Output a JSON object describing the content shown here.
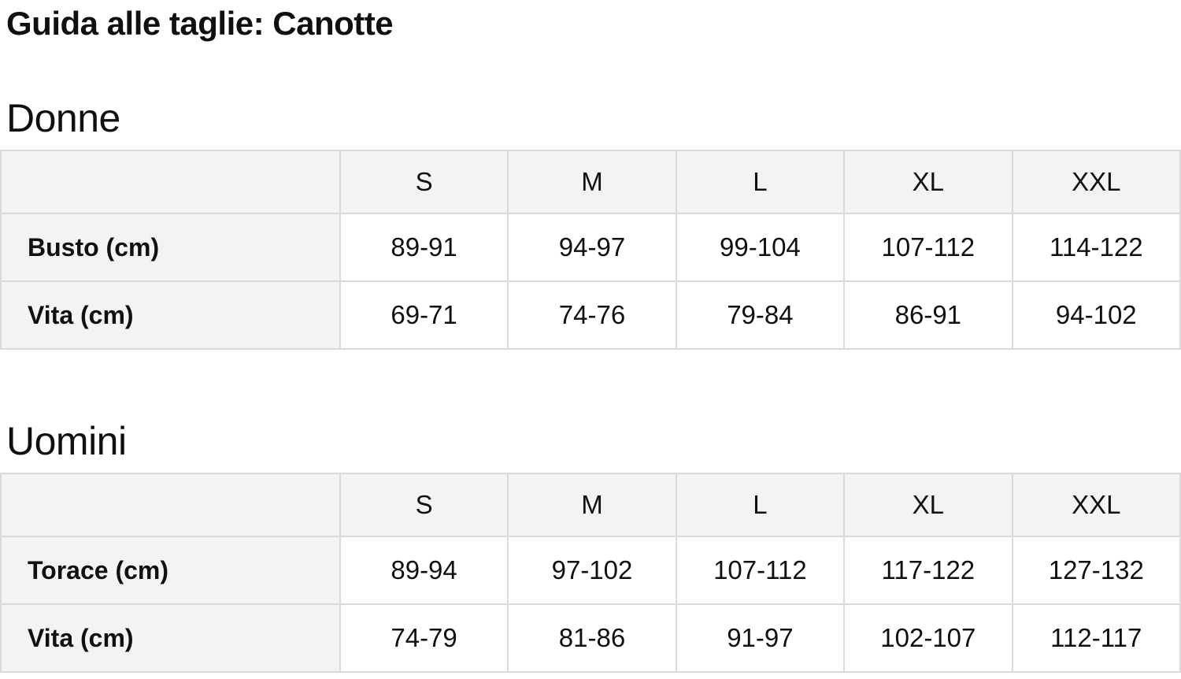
{
  "page": {
    "title": "Guida alle taglie: Canotte"
  },
  "colors": {
    "cell_shaded_bg": "#f3f3f3",
    "cell_plain_bg": "#ffffff",
    "border": "#d9d9d9",
    "text": "#0f1111"
  },
  "sections": [
    {
      "heading": "Donne",
      "table": {
        "columns": [
          "S",
          "M",
          "L",
          "XL",
          "XXL"
        ],
        "rows": [
          {
            "label": "Busto (cm)",
            "values": [
              "89-91",
              "94-97",
              "99-104",
              "107-112",
              "114-122"
            ]
          },
          {
            "label": "Vita (cm)",
            "values": [
              "69-71",
              "74-76",
              "79-84",
              "86-91",
              "94-102"
            ]
          }
        ]
      }
    },
    {
      "heading": "Uomini",
      "table": {
        "columns": [
          "S",
          "M",
          "L",
          "XL",
          "XXL"
        ],
        "rows": [
          {
            "label": "Torace (cm)",
            "values": [
              "89-94",
              "97-102",
              "107-112",
              "117-122",
              "127-132"
            ]
          },
          {
            "label": "Vita (cm)",
            "values": [
              "74-79",
              "81-86",
              "91-97",
              "102-107",
              "112-117"
            ]
          }
        ]
      }
    }
  ]
}
